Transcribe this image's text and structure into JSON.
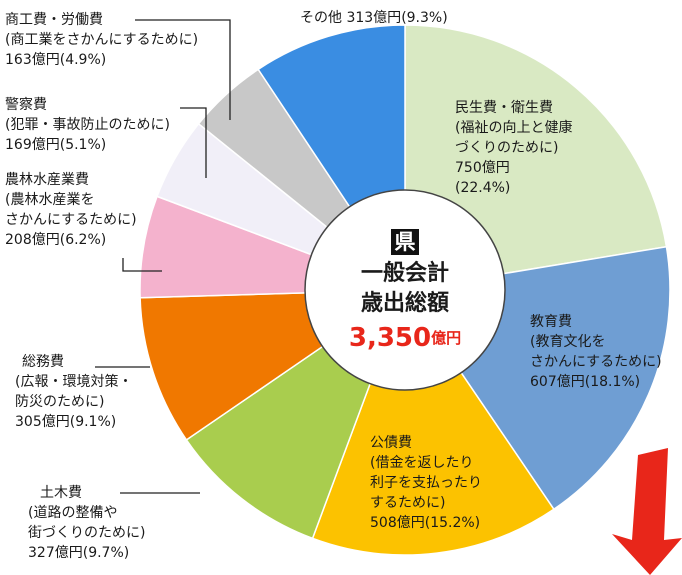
{
  "chart_data": {
    "type": "pie",
    "donut": true,
    "center_mark": "県",
    "center_title": [
      "一般会計",
      "歳出総額"
    ],
    "total": {
      "value": 3350,
      "label": "3,350"
    },
    "total_unit": "億円",
    "categories": [
      "民生費・衛生費",
      "教育費",
      "公債費",
      "土木費",
      "総務費",
      "農林水産業費",
      "警察費",
      "商工費・労働費",
      "その他"
    ],
    "notes": [
      [
        "(福祉の向上と健康",
        "づくりのために)"
      ],
      [
        "(教育文化を",
        "さかんにするために)"
      ],
      [
        "(借金を返したり",
        "利子を支払ったり",
        "するために)"
      ],
      [
        "(道路の整備や",
        "街づくりのために)"
      ],
      [
        "(広報・環境対策・",
        "防災のために)"
      ],
      [
        "(農林水産業を",
        "さかんにするために)"
      ],
      [
        "(犯罪・事故防止のために)"
      ],
      [
        "(商工業をさかんにするために)"
      ],
      []
    ],
    "values": [
      750,
      607,
      508,
      327,
      305,
      208,
      169,
      163,
      313
    ],
    "value_labels": [
      "750億円",
      "607億円",
      "508億円",
      "327億円",
      "305億円",
      "208億円",
      "169億円",
      "163億円",
      "313億円"
    ],
    "percent_labels": [
      "(22.4%)",
      "(18.1%)",
      "(15.2%)",
      "(9.7%)",
      "(9.1%)",
      "(6.2%)",
      "(5.1%)",
      "(4.9%)",
      "(9.3%)"
    ],
    "colors": [
      "#d9e9c3",
      "#6f9ed3",
      "#fcc200",
      "#a9cd4e",
      "#f07800",
      "#f4b2cd",
      "#f1eff8",
      "#c8c8c8",
      "#3a8de2"
    ]
  }
}
